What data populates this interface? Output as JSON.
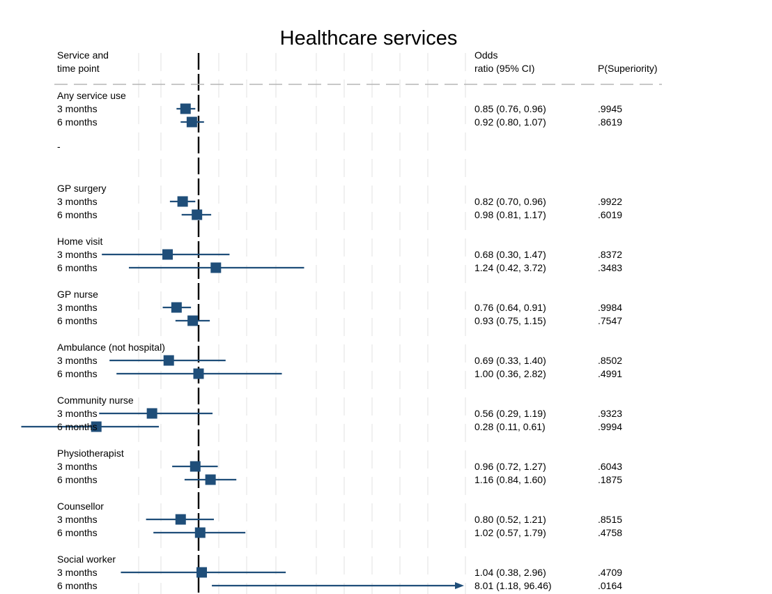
{
  "chart_data": {
    "type": "forest",
    "title": "Healthcare services",
    "columns": {
      "label_header": [
        "Service and",
        "time point"
      ],
      "estimate_header": [
        "Odds",
        "ratio (95% CI)"
      ],
      "prob_header": "P(Superiority)"
    },
    "x_scale": "log",
    "reference_line": 1,
    "marker_color": "#1f4e79",
    "groups": [
      {
        "name": "Any service use",
        "trailing_text": "-",
        "rows": [
          {
            "label": "3 months",
            "or": 0.85,
            "lo": 0.76,
            "hi": 0.96,
            "text": "0.85 (0.76, 0.96)",
            "p": ".9945"
          },
          {
            "label": "6 months",
            "or": 0.92,
            "lo": 0.8,
            "hi": 1.07,
            "text": "0.92 (0.80, 1.07)",
            "p": ".8619"
          }
        ]
      },
      {
        "name": "GP surgery",
        "rows": [
          {
            "label": "3 months",
            "or": 0.82,
            "lo": 0.7,
            "hi": 0.96,
            "text": "0.82 (0.70, 0.96)",
            "p": ".9922"
          },
          {
            "label": "6 months",
            "or": 0.98,
            "lo": 0.81,
            "hi": 1.17,
            "text": "0.98 (0.81, 1.17)",
            "p": ".6019"
          }
        ]
      },
      {
        "name": "Home visit",
        "rows": [
          {
            "label": "3 months",
            "or": 0.68,
            "lo": 0.3,
            "hi": 1.47,
            "text": "0.68 (0.30, 1.47)",
            "p": ".8372"
          },
          {
            "label": "6 months",
            "or": 1.24,
            "lo": 0.42,
            "hi": 3.72,
            "text": "1.24 (0.42, 3.72)",
            "p": ".3483"
          }
        ]
      },
      {
        "name": "GP nurse",
        "rows": [
          {
            "label": "3 months",
            "or": 0.76,
            "lo": 0.64,
            "hi": 0.91,
            "text": "0.76 (0.64, 0.91)",
            "p": ".9984"
          },
          {
            "label": "6 months",
            "or": 0.93,
            "lo": 0.75,
            "hi": 1.15,
            "text": "0.93 (0.75, 1.15)",
            "p": ".7547"
          }
        ]
      },
      {
        "name": "Ambulance (not hospital)",
        "rows": [
          {
            "label": "3 months",
            "or": 0.69,
            "lo": 0.33,
            "hi": 1.4,
            "text": "0.69 (0.33, 1.40)",
            "p": ".8502"
          },
          {
            "label": "6 months",
            "or": 1.0,
            "lo": 0.36,
            "hi": 2.82,
            "text": "1.00 (0.36, 2.82)",
            "p": ".4991"
          }
        ]
      },
      {
        "name": "Community nurse",
        "rows": [
          {
            "label": "3 months",
            "or": 0.56,
            "lo": 0.29,
            "hi": 1.19,
            "text": "0.56 (0.29, 1.19)",
            "p": ".9323"
          },
          {
            "label": "6 months",
            "or": 0.28,
            "lo": 0.11,
            "hi": 0.61,
            "text": "0.28 (0.11, 0.61)",
            "p": ".9994"
          }
        ]
      },
      {
        "name": "Physiotherapist",
        "rows": [
          {
            "label": "3 months",
            "or": 0.96,
            "lo": 0.72,
            "hi": 1.27,
            "text": "0.96 (0.72, 1.27)",
            "p": ".6043"
          },
          {
            "label": "6 months",
            "or": 1.16,
            "lo": 0.84,
            "hi": 1.6,
            "text": "1.16 (0.84, 1.60)",
            "p": ".1875"
          }
        ]
      },
      {
        "name": "Counsellor",
        "rows": [
          {
            "label": "3 months",
            "or": 0.8,
            "lo": 0.52,
            "hi": 1.21,
            "text": "0.80 (0.52, 1.21)",
            "p": ".8515"
          },
          {
            "label": "6 months",
            "or": 1.02,
            "lo": 0.57,
            "hi": 1.79,
            "text": "1.02 (0.57, 1.79)",
            "p": ".4758"
          }
        ]
      },
      {
        "name": "Social worker",
        "rows": [
          {
            "label": "3 months",
            "or": 1.04,
            "lo": 0.38,
            "hi": 2.96,
            "text": "1.04 (0.38, 2.96)",
            "p": ".4709"
          },
          {
            "label": "6 months",
            "or": 8.01,
            "lo": 1.18,
            "hi": 96.46,
            "text": "8.01 (1.18, 96.46)",
            "p": ".0164",
            "truncated_arrow": true
          }
        ]
      }
    ]
  }
}
